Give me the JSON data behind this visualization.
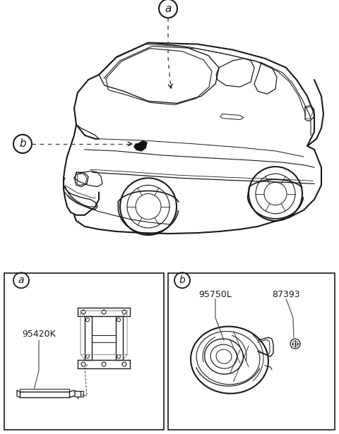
{
  "bg_color": "#ffffff",
  "line_color": "#1a1a1a",
  "text_color": "#1a1a1a",
  "dash_color": "#444444",
  "label_a": "a",
  "label_b": "b",
  "part_a_label": "95420K",
  "part_b1_label": "95750L",
  "part_b2_label": "87393",
  "fig_w": 4.8,
  "fig_h": 6.15,
  "dpi": 100
}
